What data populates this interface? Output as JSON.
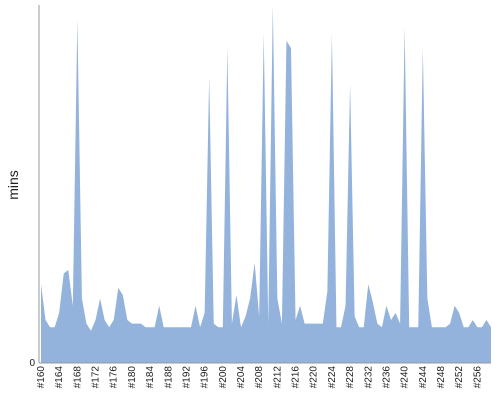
{
  "chart_data": {
    "type": "area",
    "ylabel": "mins",
    "xlabel": "",
    "ylim": [
      0,
      100
    ],
    "y_ticks": [
      "0"
    ],
    "x_tick_labels": [
      "#160",
      "#164",
      "#168",
      "#172",
      "#176",
      "#180",
      "#184",
      "#188",
      "#192",
      "#196",
      "#200",
      "#204",
      "#208",
      "#212",
      "#216",
      "#220",
      "#224",
      "#228",
      "#232",
      "#236",
      "#240",
      "#244",
      "#248",
      "#252",
      "#256"
    ],
    "x": [
      160,
      161,
      162,
      163,
      164,
      165,
      166,
      167,
      168,
      169,
      170,
      171,
      172,
      173,
      174,
      175,
      176,
      177,
      178,
      179,
      180,
      181,
      182,
      183,
      184,
      185,
      186,
      187,
      188,
      189,
      190,
      191,
      192,
      193,
      194,
      195,
      196,
      197,
      198,
      199,
      200,
      201,
      202,
      203,
      204,
      205,
      206,
      207,
      208,
      209,
      210,
      211,
      212,
      213,
      214,
      215,
      216,
      217,
      218,
      219,
      220,
      221,
      222,
      223,
      224,
      225,
      226,
      227,
      228,
      229,
      230,
      231,
      232,
      233,
      234,
      235,
      236,
      237,
      238,
      239,
      240,
      241,
      242,
      243,
      244,
      245,
      246,
      247,
      248,
      249,
      250,
      251,
      252,
      253,
      254,
      255,
      256,
      257,
      258,
      259
    ],
    "series": [
      {
        "values": [
          22,
          12,
          10,
          10,
          14,
          25,
          26,
          16,
          96,
          18,
          11,
          9,
          12,
          18,
          12,
          10,
          12,
          21,
          19,
          12,
          11,
          11,
          11,
          10,
          10,
          10,
          16,
          10,
          10,
          10,
          10,
          10,
          10,
          10,
          16,
          10,
          14,
          80,
          11,
          10,
          10,
          88,
          11,
          19,
          10,
          13,
          18,
          28,
          13,
          92,
          11,
          100,
          18,
          11,
          90,
          88,
          12,
          16,
          11,
          11,
          11,
          11,
          11,
          20,
          92,
          10,
          10,
          16,
          78,
          13,
          10,
          10,
          22,
          17,
          11,
          10,
          16,
          12,
          14,
          11,
          94,
          10,
          10,
          10,
          88,
          18,
          10,
          10,
          10,
          10,
          11,
          16,
          14,
          10,
          10,
          12,
          10,
          10,
          12,
          10
        ]
      }
    ],
    "fill_color": "#93b3dc",
    "grid": false
  }
}
